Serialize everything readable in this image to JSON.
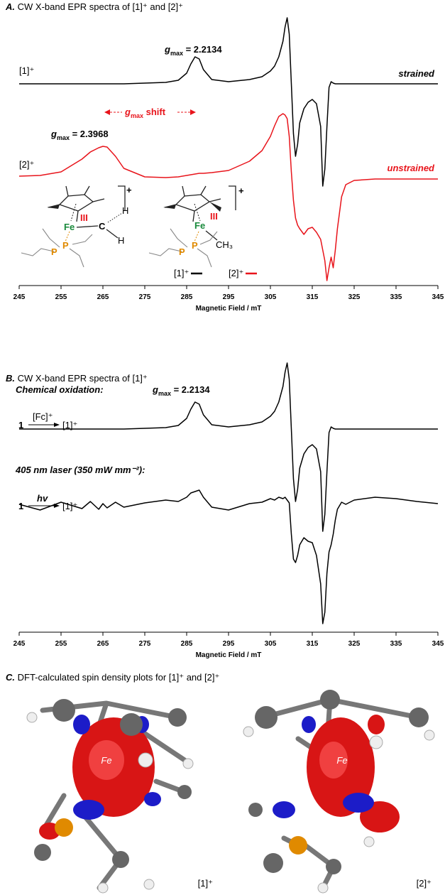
{
  "chart_data": [
    {
      "type": "line",
      "title": [
        "A.",
        "CW X-band EPR spectra of [1]⁺ and [2]⁺"
      ],
      "xlabel": "Magnetic Field / mT",
      "xlim": [
        245,
        345
      ],
      "xticks": [
        245,
        255,
        265,
        275,
        285,
        295,
        305,
        315,
        325,
        335,
        345
      ],
      "ylim": [
        -150,
        100
      ],
      "x": [
        245,
        250,
        255,
        260,
        262,
        264,
        265,
        266,
        268,
        270,
        275,
        280,
        283,
        285,
        286,
        287,
        288,
        289,
        291,
        295,
        300,
        303,
        305,
        306,
        307,
        308,
        308.5,
        309,
        309.5,
        310,
        310.5,
        311,
        311.5,
        312,
        313,
        314,
        315,
        316,
        317,
        317.5,
        318,
        318.5,
        319,
        319.5,
        320,
        320.5,
        321,
        322,
        323,
        325,
        330,
        335,
        340,
        345
      ],
      "series": [
        {
          "name": "[1]⁺",
          "color": "#000000",
          "label": "strained",
          "values": [
            0,
            0,
            0,
            0,
            0,
            0,
            0,
            0,
            0,
            0,
            1,
            2,
            5,
            15,
            28,
            38,
            35,
            20,
            6,
            3,
            6,
            10,
            18,
            25,
            38,
            60,
            80,
            93,
            70,
            0,
            -70,
            -102,
            -85,
            -55,
            -35,
            -26,
            -22,
            -28,
            -60,
            -144,
            -120,
            -60,
            -5,
            3,
            1,
            0,
            0,
            0,
            0,
            0,
            0,
            0,
            0,
            0
          ]
        },
        {
          "name": "[2]⁺",
          "color": "#e8141b",
          "label": "unstrained",
          "values": [
            4,
            5,
            10,
            28,
            38,
            44,
            46,
            45,
            32,
            15,
            3,
            2,
            3,
            5,
            6,
            7,
            8,
            8,
            9,
            12,
            25,
            40,
            60,
            75,
            88,
            92,
            90,
            85,
            60,
            10,
            -30,
            -55,
            -65,
            -70,
            -78,
            -70,
            -68,
            -75,
            -85,
            -100,
            -115,
            -143,
            -125,
            -110,
            -125,
            -100,
            -70,
            -25,
            -8,
            -2,
            0,
            0,
            0,
            0
          ]
        }
      ],
      "annotations": [
        {
          "symbol": "g",
          "subscript": "max",
          "text": "= 2.2134"
        },
        {
          "symbol": "g",
          "subscript": "max",
          "text": "= 2.3968"
        },
        {
          "symbol": "g",
          "subscript": "max",
          "text": "shift"
        }
      ],
      "structures": [
        {
          "metal": "Fe",
          "oxidation": "III",
          "carbon": "C",
          "h1": "H",
          "h2": "H",
          "p1": "P",
          "p2": "P",
          "charge": "+"
        },
        {
          "metal": "Fe",
          "oxidation": "III",
          "methyl": "CH₃",
          "p1": "P",
          "p2": "P",
          "charge": "+"
        }
      ]
    },
    {
      "type": "line",
      "title": [
        "B.",
        "CW X-band EPR spectra of [1]⁺"
      ],
      "xlabel": "Magnetic Field / mT",
      "xlim": [
        245,
        345
      ],
      "xticks": [
        245,
        255,
        265,
        275,
        285,
        295,
        305,
        315,
        325,
        335,
        345
      ],
      "ylim": [
        -170,
        100
      ],
      "x": [
        245,
        250,
        255,
        260,
        262,
        264,
        265,
        266,
        268,
        270,
        275,
        280,
        283,
        285,
        286,
        287,
        288,
        289,
        291,
        295,
        300,
        303,
        305,
        306,
        307,
        308,
        308.5,
        309,
        309.5,
        310,
        310.5,
        311,
        311.5,
        312,
        313,
        314,
        315,
        316,
        317,
        317.5,
        318,
        318.5,
        319,
        319.5,
        320,
        320.5,
        321,
        322,
        323,
        325,
        330,
        335,
        340,
        345
      ],
      "series": [
        {
          "name": "Chemical oxidation:",
          "color": "#000000",
          "values": [
            0,
            0,
            0,
            0,
            0,
            0,
            0,
            0,
            0,
            0,
            1,
            2,
            5,
            15,
            28,
            38,
            35,
            20,
            6,
            3,
            6,
            10,
            18,
            25,
            38,
            60,
            80,
            93,
            70,
            0,
            -70,
            -102,
            -85,
            -55,
            -35,
            -26,
            -22,
            -28,
            -60,
            -144,
            -120,
            -60,
            -5,
            3,
            1,
            0,
            0,
            0,
            0,
            0,
            0,
            0,
            0,
            0
          ]
        },
        {
          "name": "405 nm laser (350 mW mm⁻²):",
          "color": "#000000",
          "values": [
            2,
            -6,
            5,
            -4,
            6,
            -5,
            3,
            -3,
            5,
            -2,
            4,
            8,
            6,
            12,
            18,
            20,
            22,
            12,
            -2,
            -6,
            3,
            5,
            10,
            8,
            12,
            10,
            12,
            8,
            4,
            -40,
            -75,
            -80,
            -70,
            -55,
            -45,
            -50,
            -52,
            -70,
            -110,
            -166,
            -150,
            -95,
            -65,
            -55,
            -40,
            -20,
            -5,
            5,
            2,
            8,
            12,
            10,
            6,
            3
          ]
        }
      ],
      "annotations": [
        {
          "symbol": "g",
          "subscript": "max",
          "text": "= 2.2134"
        }
      ],
      "schemes": [
        {
          "reactant": "1",
          "reagent": "[Fc]⁺",
          "product": "[1]⁺"
        },
        {
          "reactant": "1",
          "reagent": "hv",
          "product": "[1]⁺"
        }
      ]
    }
  ],
  "panel_c": {
    "title": [
      "C.",
      "DFT-calculated spin density plots for [1]⁺ and [2]⁺"
    ],
    "plots": [
      {
        "metal": "Fe",
        "label": "[1]⁺"
      },
      {
        "metal": "Fe",
        "label": "[2]⁺"
      }
    ]
  }
}
